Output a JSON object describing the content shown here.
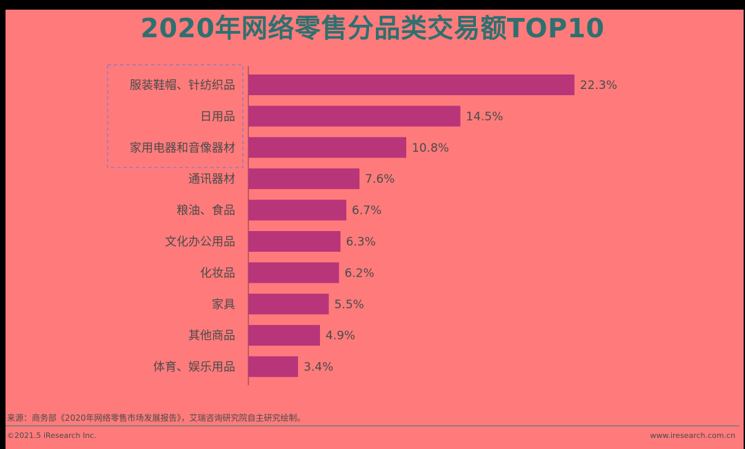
{
  "chart_data": {
    "type": "bar",
    "orientation": "horizontal",
    "title": "2020年网络零售分品类交易额TOP10",
    "categories": [
      "服装鞋帽、针纺织品",
      "日用品",
      "家用电器和音像器材",
      "通讯器材",
      "粮油、食品",
      "文化办公用品",
      "化妆品",
      "家具",
      "其他商品",
      "体育、娱乐用品"
    ],
    "values": [
      22.3,
      14.5,
      10.8,
      7.6,
      6.7,
      6.3,
      6.2,
      5.5,
      4.9,
      3.4
    ],
    "value_labels": [
      "22.3%",
      "14.5%",
      "10.8%",
      "7.6%",
      "6.7%",
      "6.3%",
      "6.2%",
      "5.5%",
      "4.9%",
      "3.4%"
    ],
    "unit": "%",
    "highlighted_top": 3,
    "grid": false,
    "legend": "none"
  },
  "footer": {
    "source": "来源：商务部《2020年网络零售市场发展报告》，艾瑞咨询研究院自主研究绘制。",
    "copyright": "©2021.5 iResearch Inc.",
    "website": "www.iresearch.com.cn"
  },
  "colors": {
    "background": "#ff7b7b",
    "bar": "#b8357a",
    "title": "#2e7070",
    "text": "#4a4a4a",
    "highlight_border": "#7a7acc"
  }
}
